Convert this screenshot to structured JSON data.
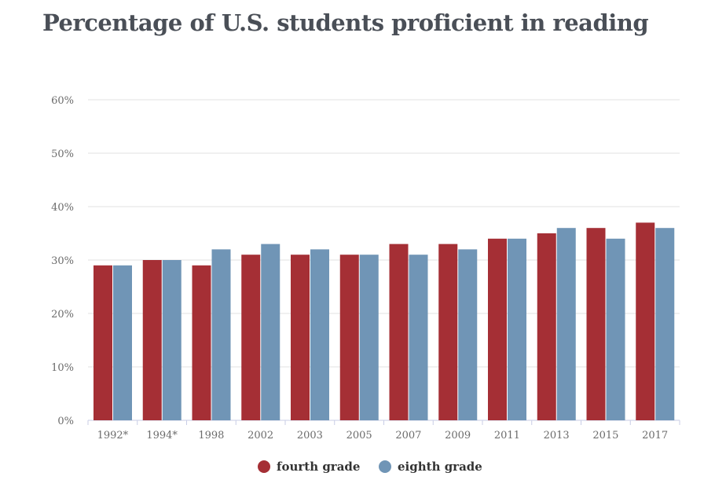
{
  "chart_data": {
    "type": "bar",
    "title": "Percentage of U.S. students proficient in reading",
    "xlabel": "",
    "ylabel": "",
    "ylim": [
      0,
      60
    ],
    "yticks": [
      "0%",
      "10%",
      "20%",
      "30%",
      "40%",
      "50%",
      "60%"
    ],
    "grid": true,
    "legend_placement": "bottom",
    "categories": [
      "1992*",
      "1994*",
      "1998",
      "2002",
      "2003",
      "2005",
      "2007",
      "2009",
      "2011",
      "2013",
      "2015",
      "2017"
    ],
    "series": [
      {
        "name": "fourth grade",
        "color": "#a52f35",
        "values": [
          29,
          30,
          29,
          31,
          31,
          31,
          33,
          33,
          34,
          35,
          36,
          37
        ]
      },
      {
        "name": "eighth grade",
        "color": "#7095b6",
        "values": [
          29,
          30,
          32,
          33,
          32,
          31,
          31,
          32,
          34,
          36,
          34,
          36
        ]
      }
    ]
  }
}
